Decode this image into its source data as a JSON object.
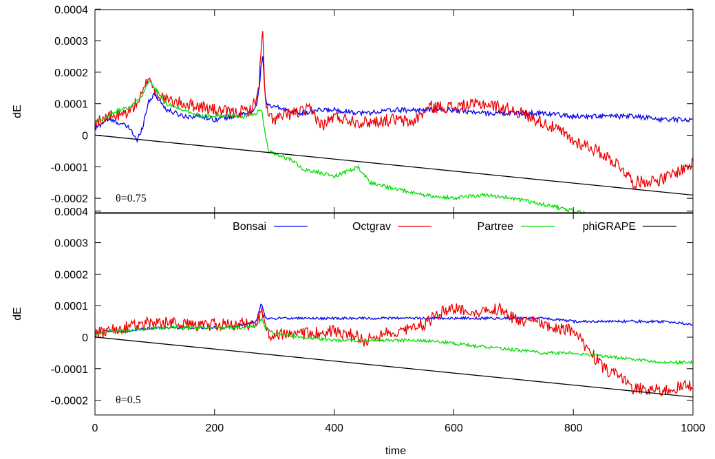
{
  "chart_data": [
    {
      "type": "line",
      "panel": "top",
      "xlabel": "",
      "ylabel": "dE",
      "xlim": [
        0,
        1000
      ],
      "ylim": [
        -0.00025,
        0.0004
      ],
      "xticks": [],
      "yticks": [
        "0.0004",
        "0.0003",
        "0.0002",
        "0.0001",
        "0",
        "-0.0001",
        "-0.0002"
      ],
      "ytick_values": [
        0.0004,
        0.0003,
        0.0002,
        0.0001,
        0,
        -0.0001,
        -0.0002
      ],
      "annotation": "θ=0.75",
      "legend": false,
      "series": [
        {
          "name": "Bonsai",
          "color": "#0000ee",
          "x": [
            0,
            20,
            40,
            60,
            70,
            80,
            90,
            100,
            120,
            150,
            180,
            200,
            230,
            260,
            270,
            275,
            280,
            285,
            290,
            300,
            320,
            350,
            380,
            400,
            450,
            500,
            550,
            600,
            650,
            700,
            750,
            800,
            850,
            900,
            950,
            1000
          ],
          "y": [
            2e-05,
            5e-05,
            4e-05,
            2e-05,
            -2e-05,
            3e-05,
            0.00011,
            0.00013,
            8e-05,
            6e-05,
            6e-05,
            5e-05,
            6e-05,
            7e-05,
            9e-05,
            0.00016,
            0.00026,
            0.00012,
            9e-05,
            9e-05,
            8e-05,
            7e-05,
            8e-05,
            8e-05,
            7e-05,
            8e-05,
            8e-05,
            8e-05,
            7e-05,
            7e-05,
            7e-05,
            6e-05,
            6e-05,
            6e-05,
            5e-05,
            5e-05
          ],
          "noise": 8e-06
        },
        {
          "name": "Octgrav",
          "color": "#ee0000",
          "x": [
            0,
            20,
            40,
            60,
            80,
            90,
            100,
            120,
            150,
            180,
            200,
            230,
            260,
            270,
            275,
            280,
            285,
            290,
            300,
            330,
            360,
            380,
            400,
            450,
            500,
            530,
            560,
            600,
            650,
            700,
            750,
            780,
            800,
            820,
            850,
            880,
            900,
            950,
            1000
          ],
          "y": [
            4e-05,
            6e-05,
            6e-05,
            8e-05,
            0.00013,
            0.00019,
            0.00014,
            0.00011,
            0.0001,
            9e-05,
            8e-05,
            7e-05,
            8e-05,
            0.00011,
            0.00018,
            0.00034,
            0.0001,
            6e-05,
            5e-05,
            7e-05,
            8e-05,
            3e-05,
            6e-05,
            4e-05,
            5e-05,
            4e-05,
            9e-05,
            9e-05,
            0.0001,
            8e-05,
            4e-05,
            1e-05,
            -2e-05,
            -3e-05,
            -6e-05,
            -0.0001,
            -0.00015,
            -0.00014,
            -9e-05
          ],
          "noise": 2e-05
        },
        {
          "name": "Partree",
          "color": "#00dd00",
          "x": [
            0,
            20,
            40,
            60,
            80,
            90,
            100,
            120,
            150,
            180,
            200,
            230,
            260,
            270,
            275,
            280,
            283,
            290,
            300,
            330,
            350,
            380,
            400,
            430,
            440,
            460,
            500,
            550,
            600,
            650,
            700,
            750,
            800,
            830
          ],
          "y": [
            4e-05,
            6e-05,
            8e-05,
            9e-05,
            0.00013,
            0.00017,
            0.00015,
            0.0001,
            8e-05,
            6e-05,
            6e-05,
            6e-05,
            6e-05,
            7e-05,
            8e-05,
            7e-05,
            2e-05,
            -5e-05,
            -6e-05,
            -8e-05,
            -0.00011,
            -0.00012,
            -0.00013,
            -0.00011,
            -0.0001,
            -0.00015,
            -0.00017,
            -0.00019,
            -0.0002,
            -0.00019,
            -0.0002,
            -0.00022,
            -0.00024,
            -0.00025
          ],
          "noise": 6e-06
        },
        {
          "name": "phiGRAPE",
          "color": "#000000",
          "x": [
            0,
            1000
          ],
          "y": [
            5e-07,
            -0.00019
          ],
          "noise": 0
        }
      ]
    },
    {
      "type": "line",
      "panel": "bottom",
      "xlabel": "time",
      "ylabel": "dE",
      "xlim": [
        0,
        1000
      ],
      "ylim": [
        -0.00025,
        0.0004
      ],
      "xticks": [
        "0",
        "200",
        "400",
        "600",
        "800",
        "1000"
      ],
      "xtick_values": [
        0,
        200,
        400,
        600,
        800,
        1000
      ],
      "yticks": [
        "0.0004",
        "0.0003",
        "0.0002",
        "0.0001",
        "0",
        "-0.0001",
        "-0.0002"
      ],
      "ytick_values": [
        0.0004,
        0.0003,
        0.0002,
        0.0001,
        0,
        -0.0001,
        -0.0002
      ],
      "annotation": "θ=0.5",
      "legend": true,
      "legend_position": "top",
      "series": [
        {
          "name": "Bonsai",
          "color": "#0000ee",
          "x": [
            0,
            20,
            50,
            100,
            150,
            200,
            250,
            270,
            278,
            285,
            300,
            350,
            400,
            450,
            500,
            550,
            600,
            650,
            700,
            750,
            800,
            850,
            900,
            950,
            1000
          ],
          "y": [
            1e-05,
            2e-05,
            2e-05,
            3e-05,
            3e-05,
            3e-05,
            4e-05,
            5e-05,
            0.00011,
            6e-05,
            6e-05,
            6e-05,
            6e-05,
            6e-05,
            6e-05,
            6e-05,
            6e-05,
            6e-05,
            6e-05,
            6e-05,
            5e-05,
            5e-05,
            5e-05,
            5e-05,
            4e-05
          ],
          "noise": 4e-06
        },
        {
          "name": "Octgrav",
          "color": "#ee0000",
          "x": [
            0,
            20,
            50,
            100,
            150,
            200,
            250,
            270,
            280,
            290,
            300,
            350,
            400,
            430,
            450,
            500,
            550,
            580,
            600,
            650,
            680,
            700,
            750,
            800,
            830,
            850,
            880,
            900,
            950,
            1000
          ],
          "y": [
            1e-05,
            2e-05,
            3e-05,
            5e-05,
            4e-05,
            4e-05,
            4e-05,
            5e-05,
            8e-05,
            1e-05,
            1e-05,
            1e-05,
            2e-05,
            1e-05,
            -1e-05,
            2e-05,
            4e-05,
            8e-05,
            9e-05,
            8e-05,
            9e-05,
            6e-05,
            4e-05,
            2e-05,
            -5e-05,
            -0.0001,
            -0.00013,
            -0.00016,
            -0.00017,
            -0.00015
          ],
          "noise": 2e-05
        },
        {
          "name": "Partree",
          "color": "#00dd00",
          "x": [
            0,
            20,
            50,
            100,
            150,
            200,
            250,
            270,
            280,
            285,
            300,
            350,
            400,
            450,
            500,
            550,
            600,
            650,
            700,
            750,
            800,
            850,
            900,
            950,
            1000
          ],
          "y": [
            1e-05,
            2e-05,
            2e-05,
            3e-05,
            3e-05,
            3e-05,
            3e-05,
            4e-05,
            6e-05,
            3e-05,
            1e-05,
            0.0,
            -1e-05,
            -1e-05,
            -1e-05,
            -1e-05,
            -2e-05,
            -3e-05,
            -4e-05,
            -5e-05,
            -5e-05,
            -6e-05,
            -7e-05,
            -8e-05,
            -8e-05
          ],
          "noise": 5e-06
        },
        {
          "name": "phiGRAPE",
          "color": "#000000",
          "x": [
            0,
            1000
          ],
          "y": [
            5e-07,
            -0.00019
          ],
          "noise": 0
        }
      ]
    }
  ]
}
